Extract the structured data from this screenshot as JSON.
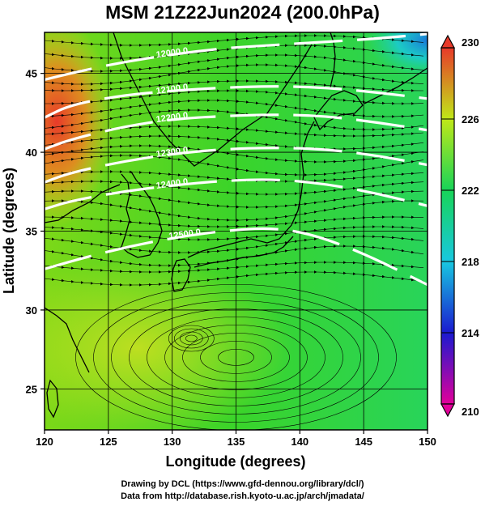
{
  "title": "MSM 21Z22Jun2024 (200.0hPa)",
  "credits": {
    "line1": "Drawing by DCL (https://www.gfd-dennou.org/library/dcl/)",
    "line2": "Data from http://database.rish.kyoto-u.ac.jp/arch/jmadata/"
  },
  "chart_data": {
    "type": "heatmap",
    "title": "MSM 21Z22Jun2024 (200.0hPa)",
    "xlabel": "Longitude (degrees)",
    "ylabel": "Latitude  (degrees)",
    "xlim": [
      120,
      150
    ],
    "ylim": [
      22.4,
      47.6
    ],
    "x_ticks": [
      120,
      125,
      130,
      135,
      140,
      145,
      150
    ],
    "y_ticks": [
      25,
      30,
      35,
      40,
      45
    ],
    "colorbar": {
      "min": 210,
      "max": 230,
      "tick_labels": [
        230,
        226,
        222,
        218,
        214,
        210
      ],
      "colors": [
        "#e2009a",
        "#1a1ad0",
        "#18c8e0",
        "#18d458",
        "#c0e818",
        "#e83a2a"
      ]
    },
    "field_estimates": [
      {
        "lon": 121,
        "lat": 44,
        "value": 228
      },
      {
        "lon": 122,
        "lat": 41,
        "value": 227
      },
      {
        "lon": 125,
        "lat": 38,
        "value": 224
      },
      {
        "lon": 127,
        "lat": 44,
        "value": 224
      },
      {
        "lon": 133,
        "lat": 42,
        "value": 222
      },
      {
        "lon": 140,
        "lat": 38,
        "value": 222
      },
      {
        "lon": 145,
        "lat": 35,
        "value": 221
      },
      {
        "lon": 149,
        "lat": 46,
        "value": 216
      },
      {
        "lon": 130,
        "lat": 28,
        "value": 224
      },
      {
        "lon": 140,
        "lat": 25,
        "value": 223
      }
    ],
    "contours": [
      {
        "label": "12000.0",
        "points": [
          [
            120,
            44.6
          ],
          [
            122,
            45.0
          ],
          [
            126,
            45.7
          ],
          [
            130,
            46.2
          ],
          [
            134,
            46.6
          ],
          [
            138,
            46.8
          ],
          [
            142,
            47.0
          ],
          [
            146,
            47.2
          ],
          [
            150,
            47.5
          ]
        ]
      },
      {
        "label": "12100.0",
        "points": [
          [
            120,
            42.2
          ],
          [
            122,
            43.0
          ],
          [
            126,
            43.6
          ],
          [
            130,
            43.9
          ],
          [
            134,
            44.1
          ],
          [
            138,
            44.2
          ],
          [
            142,
            44.1
          ],
          [
            146,
            43.8
          ],
          [
            150,
            43.4
          ]
        ]
      },
      {
        "label": "12200.0",
        "points": [
          [
            120,
            40.2
          ],
          [
            122,
            40.8
          ],
          [
            126,
            41.6
          ],
          [
            130,
            42.1
          ],
          [
            134,
            42.3
          ],
          [
            138,
            42.4
          ],
          [
            142,
            42.3
          ],
          [
            146,
            41.9
          ],
          [
            150,
            41.4
          ]
        ]
      },
      {
        "label": "12300.0",
        "points": [
          [
            120,
            38.1
          ],
          [
            122,
            38.7
          ],
          [
            126,
            39.4
          ],
          [
            130,
            39.9
          ],
          [
            134,
            40.2
          ],
          [
            138,
            40.3
          ],
          [
            142,
            40.2
          ],
          [
            146,
            39.8
          ],
          [
            150,
            39.2
          ]
        ]
      },
      {
        "label": "12400.0",
        "points": [
          [
            120,
            36.4
          ],
          [
            122,
            36.9
          ],
          [
            126,
            37.5
          ],
          [
            130,
            37.9
          ],
          [
            134,
            38.2
          ],
          [
            138,
            38.3
          ],
          [
            142,
            38.0
          ],
          [
            146,
            37.4
          ],
          [
            150,
            36.6
          ]
        ]
      },
      {
        "label": "12500.0",
        "points": [
          [
            120,
            32.6
          ],
          [
            123,
            33.3
          ],
          [
            127,
            34.1
          ],
          [
            131,
            34.7
          ],
          [
            135,
            35.1
          ],
          [
            138,
            35.2
          ],
          [
            141,
            34.8
          ],
          [
            145,
            33.6
          ],
          [
            150,
            31.6
          ]
        ]
      }
    ]
  }
}
